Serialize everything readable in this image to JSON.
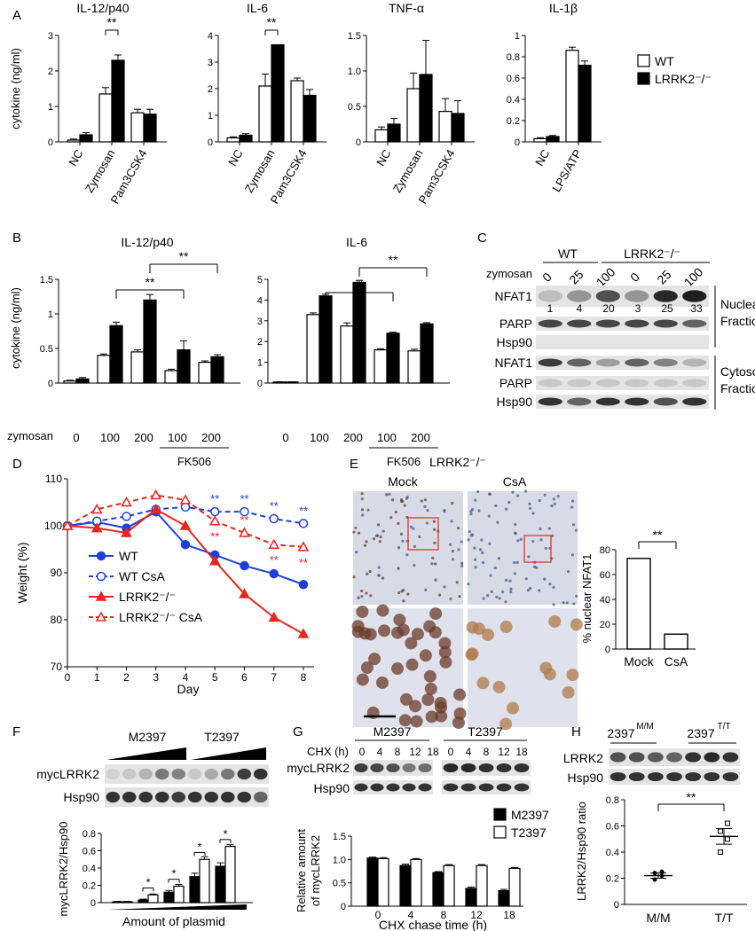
{
  "panels": {
    "A": {
      "letter": "A",
      "ylabel": "cytokine (ng/ml)",
      "legend": [
        {
          "label": "WT",
          "fill": "#ffffff"
        },
        {
          "label": "LRRK2⁻/⁻",
          "fill": "#000000"
        }
      ],
      "sig": "**",
      "charts": [
        {
          "title": "IL-12/p40",
          "yticks": [
            "0",
            "1",
            "2",
            "3"
          ],
          "ylim": [
            0,
            3
          ],
          "categories": [
            "NC",
            "Zymosan",
            "Pam3CSK4"
          ],
          "series": [
            {
              "name": "WT",
              "values": [
                0.05,
                1.35,
                0.82
              ],
              "err": [
                0.03,
                0.18,
                0.1
              ]
            },
            {
              "name": "LRRK2⁻/⁻",
              "values": [
                0.2,
                2.3,
                0.78
              ],
              "err": [
                0.06,
                0.15,
                0.14
              ]
            }
          ]
        },
        {
          "title": "IL-6",
          "yticks": [
            "0",
            "1",
            "2",
            "3",
            "4"
          ],
          "ylim": [
            0,
            4
          ],
          "categories": [
            "NC",
            "Zymosan",
            "Pam3CSK4"
          ],
          "series": [
            {
              "name": "WT",
              "values": [
                0.15,
                2.1,
                2.3
              ],
              "err": [
                0.04,
                0.45,
                0.1
              ]
            },
            {
              "name": "LRRK2⁻/⁻",
              "values": [
                0.25,
                3.65,
                1.75
              ],
              "err": [
                0.06,
                0.0,
                0.22
              ]
            }
          ]
        },
        {
          "title": "TNF-α",
          "yticks": [
            "0",
            "0.5",
            "1.0",
            "1.5"
          ],
          "ylim": [
            0,
            1.5
          ],
          "categories": [
            "NC",
            "Zymosan",
            "Pam3CSK4"
          ],
          "series": [
            {
              "name": "WT",
              "values": [
                0.17,
                0.75,
                0.43
              ],
              "err": [
                0.04,
                0.22,
                0.18
              ]
            },
            {
              "name": "LRRK2⁻/⁻",
              "values": [
                0.25,
                0.95,
                0.4
              ],
              "err": [
                0.08,
                0.48,
                0.18
              ]
            }
          ]
        },
        {
          "title": "IL-1β",
          "yticks": [
            "0",
            "0.2",
            "0.4",
            "0.6",
            "0.8",
            "1"
          ],
          "ylim": [
            0,
            1
          ],
          "categories": [
            "NC",
            "LPS/ATP"
          ],
          "series": [
            {
              "name": "WT",
              "values": [
                0.03,
                0.86
              ],
              "err": [
                0.01,
                0.03
              ]
            },
            {
              "name": "LRRK2⁻/⁻",
              "values": [
                0.05,
                0.72
              ],
              "err": [
                0.01,
                0.04
              ]
            }
          ]
        }
      ]
    },
    "B": {
      "letter": "B",
      "ylabel": "cytokine (ng/ml)",
      "row_label": "zymosan",
      "x_labels": [
        "0",
        "100",
        "200",
        "100",
        "200"
      ],
      "group_label": "FK506",
      "sig": "**",
      "charts": [
        {
          "title": "IL-12/p40",
          "yticks": [
            "0",
            "0.5",
            "1",
            "1.5"
          ],
          "ylim": [
            0,
            1.5
          ],
          "series": [
            {
              "name": "WT",
              "values": [
                0.03,
                0.4,
                0.45,
                0.18,
                0.3
              ],
              "err": [
                0.01,
                0.02,
                0.03,
                0.02,
                0.02
              ]
            },
            {
              "name": "LRRK2⁻/⁻",
              "values": [
                0.06,
                0.83,
                1.2,
                0.48,
                0.38
              ],
              "err": [
                0.02,
                0.05,
                0.08,
                0.13,
                0.03
              ]
            }
          ]
        },
        {
          "title": "IL-6",
          "yticks": [
            "0",
            "1",
            "2",
            "3",
            "4",
            "5"
          ],
          "ylim": [
            0,
            5
          ],
          "series": [
            {
              "name": "WT",
              "values": [
                0.05,
                3.3,
                2.75,
                1.6,
                1.55
              ],
              "err": [
                0.01,
                0.08,
                0.15,
                0.05,
                0.08
              ]
            },
            {
              "name": "LRRK2⁻/⁻",
              "values": [
                0.05,
                4.2,
                4.85,
                2.4,
                2.85
              ],
              "err": [
                0.01,
                0.08,
                0.1,
                0.05,
                0.06
              ]
            }
          ]
        }
      ]
    },
    "C": {
      "letter": "C",
      "groups": [
        "WT",
        "LRRK2⁻/⁻"
      ],
      "row_label": "zymosan",
      "doses": [
        "0",
        "25",
        "100",
        "0",
        "25",
        "100"
      ],
      "rows": [
        "NFAT1",
        "PARP",
        "Hsp90",
        "NFAT1",
        "PARP",
        "Hsp90"
      ],
      "quant": [
        "1",
        "4",
        "20",
        "3",
        "25",
        "33"
      ],
      "fractions": [
        "Nuclear\nFraction",
        "Cytosol\nFraction"
      ],
      "fraction_lines": [
        [
          "Nuclear",
          "Fraction"
        ],
        [
          "Cytosol",
          "Fraction"
        ]
      ]
    },
    "D": {
      "letter": "D",
      "ylabel": "Weight (%)",
      "xlabel": "Day",
      "yticks": [
        "70",
        "80",
        "90",
        "100",
        "110"
      ],
      "xticks": [
        "0",
        "1",
        "2",
        "3",
        "4",
        "5",
        "6",
        "7",
        "8"
      ],
      "chart_data": {
        "type": "line",
        "ylim": [
          70,
          110
        ],
        "x": [
          0,
          1,
          2,
          3,
          4,
          5,
          6,
          7,
          8
        ],
        "series": [
          {
            "name": "WT",
            "color": "#1f3fdc",
            "dashed": false,
            "marker": "filled-circle",
            "values": [
              100,
              100.8,
              99.5,
              103,
              96,
              93.8,
              91.5,
              89.8,
              87.5
            ]
          },
          {
            "name": "WT CsA",
            "color": "#1f3fdc",
            "dashed": true,
            "marker": "open-circle",
            "values": [
              100,
              101,
              102,
              103.5,
              104,
              103,
              103,
              101.5,
              100.5
            ]
          },
          {
            "name": "LRRK2⁻/⁻",
            "color": "#e8261c",
            "dashed": false,
            "marker": "filled-triangle",
            "values": [
              100,
              99.5,
              98.5,
              103.5,
              100,
              92.5,
              85.5,
              80.5,
              77
            ]
          },
          {
            "name": "LRRK2⁻/⁻ CsA",
            "color": "#e8261c",
            "dashed": true,
            "marker": "open-triangle",
            "values": [
              100,
              103.5,
              105,
              106.5,
              105.5,
              101,
              98.5,
              96,
              95.5
            ]
          }
        ]
      },
      "legend": [
        "WT",
        "WT CsA",
        "LRRK2⁻/⁻",
        "LRRK2⁻/⁻ CsA"
      ],
      "sig": "**"
    },
    "E": {
      "letter": "E",
      "title": "LRRK2⁻/⁻",
      "col_labels": [
        "Mock",
        "CsA"
      ],
      "ylabel": "% nuclear NFAT1",
      "yticks": [
        "0",
        "20",
        "40",
        "60",
        "80"
      ],
      "chart_data": {
        "type": "bar",
        "categories": [
          "Mock",
          "CsA"
        ],
        "values": [
          73,
          12
        ],
        "ylim": [
          0,
          80
        ]
      },
      "sig": "**"
    },
    "F": {
      "letter": "F",
      "groups": [
        "M2397",
        "T2397"
      ],
      "rows": [
        "mycLRRK2",
        "Hsp90"
      ],
      "ylabel": "mycLRRK2/Hsp90",
      "xlabel": "Amount of plasmid",
      "yticks": [
        "0",
        "0.2",
        "0.4",
        "0.6",
        "0.8"
      ],
      "chart_data": {
        "type": "bar",
        "ylim": [
          0,
          0.8
        ],
        "series": [
          {
            "name": "M2397",
            "values": [
              0.01,
              0.03,
              0.12,
              0.3,
              0.42
            ],
            "err": [
              0.005,
              0.01,
              0.02,
              0.04,
              0.04
            ]
          },
          {
            "name": "T2397",
            "values": [
              0.01,
              0.09,
              0.19,
              0.5,
              0.65
            ],
            "err": [
              0.005,
              0.01,
              0.02,
              0.03,
              0.02
            ]
          }
        ]
      },
      "sig": "*"
    },
    "G": {
      "letter": "G",
      "row_label": "CHX (h)",
      "timepoints": [
        "0",
        "4",
        "8",
        "12",
        "18",
        "0",
        "4",
        "8",
        "12",
        "18"
      ],
      "groups": [
        "M2397",
        "T2397"
      ],
      "rows": [
        "mycLRRK2",
        "Hsp90"
      ],
      "ylabel": [
        "Relative amount",
        "of mycLRRK2"
      ],
      "xlabel": "CHX chase time (h)",
      "yticks": [
        "0",
        "0.5",
        "1.0",
        "1.5"
      ],
      "legend": [
        {
          "label": "M2397",
          "fill": "#000000"
        },
        {
          "label": "T2397",
          "fill": "#ffffff"
        }
      ],
      "chart_data": {
        "type": "bar",
        "categories": [
          "0",
          "4",
          "8",
          "12",
          "18"
        ],
        "ylim": [
          0,
          1.5
        ],
        "series": [
          {
            "name": "M2397",
            "values": [
              1.03,
              0.87,
              0.72,
              0.38,
              0.33
            ],
            "err": [
              0.02,
              0.03,
              0.02,
              0.03,
              0.03
            ]
          },
          {
            "name": "T2397",
            "values": [
              1.02,
              1.0,
              0.87,
              0.87,
              0.81
            ],
            "err": [
              0.02,
              0.02,
              0.02,
              0.02,
              0.02
            ]
          }
        ]
      }
    },
    "H": {
      "letter": "H",
      "groups": [
        "2397",
        "2397"
      ],
      "group_sups": [
        "M/M",
        "T/T"
      ],
      "rows": [
        "LRRK2",
        "Hsp90"
      ],
      "ylabel": "LRRK2/Hsp90 ratio",
      "yticks": [
        "0",
        "0.2",
        "0.4",
        "0.6",
        "0.8"
      ],
      "chart_data": {
        "type": "scatter",
        "categories": [
          "M/M",
          "T/T"
        ],
        "ylim": [
          0,
          0.8
        ],
        "points": [
          [
            0.19,
            0.22,
            0.24,
            0.25
          ],
          [
            0.4,
            0.5,
            0.56,
            0.62
          ]
        ],
        "means": [
          0.22,
          0.52
        ],
        "sem": [
          0.02,
          0.06
        ]
      },
      "sig": "**"
    }
  }
}
